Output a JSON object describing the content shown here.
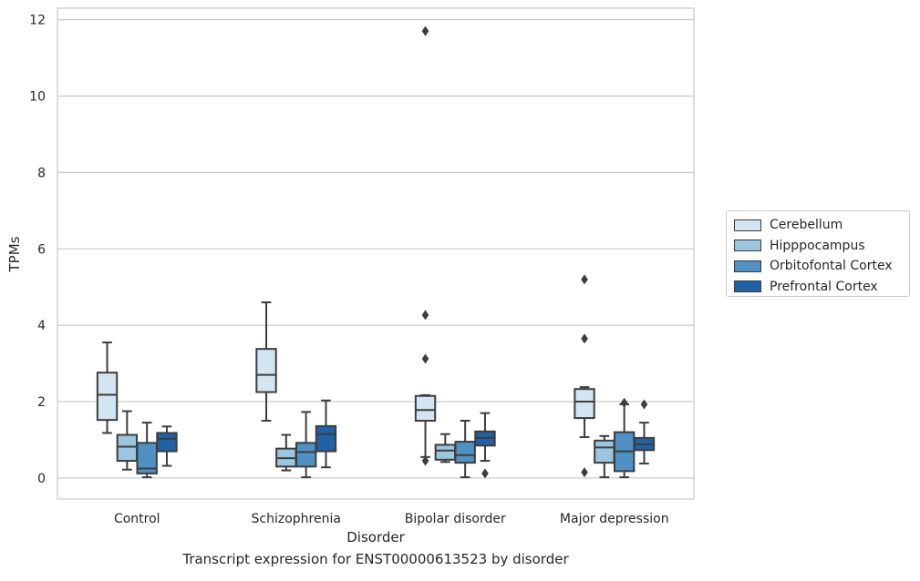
{
  "chart_data": {
    "type": "box",
    "title": "",
    "xlabel": "Disorder",
    "ylabel": "TPMs",
    "ylim": [
      -0.55,
      12.3
    ],
    "yticks": [
      0,
      2,
      4,
      6,
      8,
      10,
      12
    ],
    "grid": true,
    "legend_placement": "right",
    "categories": [
      "Control",
      "Schizophrenia",
      "Bipolar disorder",
      "Major depression"
    ],
    "series": [
      {
        "name": "Cerebellum",
        "color": "#d3e4f3",
        "boxes": [
          {
            "whislo": 1.18,
            "q1": 1.52,
            "med": 2.18,
            "q3": 2.76,
            "whishi": 3.55,
            "fliers": []
          },
          {
            "whislo": 1.5,
            "q1": 2.25,
            "med": 2.7,
            "q3": 3.38,
            "whishi": 4.6,
            "fliers": []
          },
          {
            "whislo": 0.55,
            "q1": 1.5,
            "med": 1.78,
            "q3": 2.15,
            "whishi": 2.17,
            "fliers": [
              0.45,
              3.12,
              4.27,
              11.7
            ]
          },
          {
            "whislo": 1.07,
            "q1": 1.57,
            "med": 2.0,
            "q3": 2.33,
            "whishi": 2.38,
            "fliers": [
              0.15,
              3.65,
              5.2
            ]
          }
        ]
      },
      {
        "name": "Hipppocampus",
        "color": "#9cc5df",
        "boxes": [
          {
            "whislo": 0.22,
            "q1": 0.45,
            "med": 0.82,
            "q3": 1.13,
            "whishi": 1.75,
            "fliers": []
          },
          {
            "whislo": 0.2,
            "q1": 0.3,
            "med": 0.52,
            "q3": 0.77,
            "whishi": 1.13,
            "fliers": []
          },
          {
            "whislo": 0.42,
            "q1": 0.48,
            "med": 0.72,
            "q3": 0.87,
            "whishi": 1.15,
            "fliers": []
          },
          {
            "whislo": 0.02,
            "q1": 0.4,
            "med": 0.8,
            "q3": 0.98,
            "whishi": 1.1,
            "fliers": []
          }
        ]
      },
      {
        "name": "Orbitofontal Cortex",
        "color": "#4f91c3",
        "boxes": [
          {
            "whislo": 0.02,
            "q1": 0.12,
            "med": 0.25,
            "q3": 0.92,
            "whishi": 1.45,
            "fliers": []
          },
          {
            "whislo": 0.02,
            "q1": 0.3,
            "med": 0.68,
            "q3": 0.92,
            "whishi": 1.73,
            "fliers": []
          },
          {
            "whislo": 0.02,
            "q1": 0.4,
            "med": 0.6,
            "q3": 0.95,
            "whishi": 1.5,
            "fliers": []
          },
          {
            "whislo": 0.02,
            "q1": 0.18,
            "med": 0.7,
            "q3": 1.2,
            "whishi": 1.93,
            "fliers": [
              1.97
            ]
          }
        ]
      },
      {
        "name": "Prefrontal Cortex",
        "color": "#2161a6",
        "boxes": [
          {
            "whislo": 0.32,
            "q1": 0.7,
            "med": 1.03,
            "q3": 1.18,
            "whishi": 1.35,
            "fliers": []
          },
          {
            "whislo": 0.28,
            "q1": 0.7,
            "med": 1.15,
            "q3": 1.36,
            "whishi": 2.03,
            "fliers": []
          },
          {
            "whislo": 0.45,
            "q1": 0.85,
            "med": 1.05,
            "q3": 1.22,
            "whishi": 1.7,
            "fliers": [
              0.12
            ]
          },
          {
            "whislo": 0.38,
            "q1": 0.73,
            "med": 0.88,
            "q3": 1.05,
            "whishi": 1.45,
            "fliers": [
              1.93
            ]
          }
        ]
      }
    ],
    "caption": "Transcript expression for ENST00000613523 by disorder"
  }
}
